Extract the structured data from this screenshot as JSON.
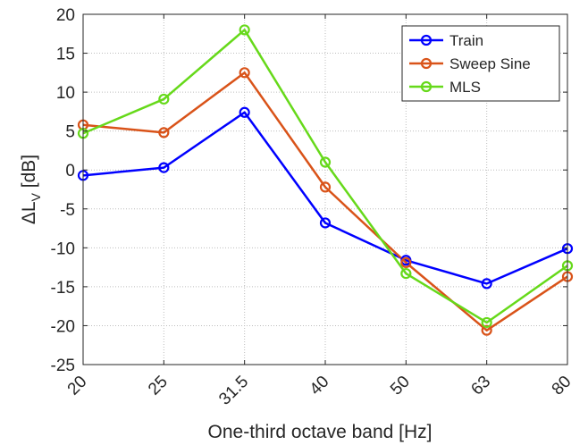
{
  "colors": {
    "train": "#0000ff",
    "sweep": "#d95319",
    "mls": "#66d91a",
    "axes": "#262626",
    "grid": "#bdbdbd"
  },
  "chart_data": {
    "type": "line",
    "xlabel": "One-third octave band [Hz]",
    "ylabel_main": "ΔL",
    "ylabel_sub": "V",
    "ylabel_unit": " [dB]",
    "categories": [
      "20",
      "25",
      "31.5",
      "40",
      "50",
      "63",
      "80"
    ],
    "ylim": [
      -25,
      20
    ],
    "yticks": [
      20,
      15,
      10,
      5,
      0,
      -5,
      -10,
      -15,
      -20,
      -25
    ],
    "grid": true,
    "legend_position": "top-right",
    "series": [
      {
        "name": "Train",
        "color": "#0000ff",
        "values": [
          -0.7,
          0.3,
          7.4,
          -6.8,
          -11.6,
          -14.6,
          -10.1
        ]
      },
      {
        "name": "Sweep Sine",
        "color": "#d95319",
        "values": [
          5.8,
          4.8,
          12.5,
          -2.2,
          -11.9,
          -20.6,
          -13.7
        ]
      },
      {
        "name": "MLS",
        "color": "#66d91a",
        "values": [
          4.7,
          9.1,
          18.0,
          1.0,
          -13.3,
          -19.6,
          -12.3
        ]
      }
    ]
  }
}
